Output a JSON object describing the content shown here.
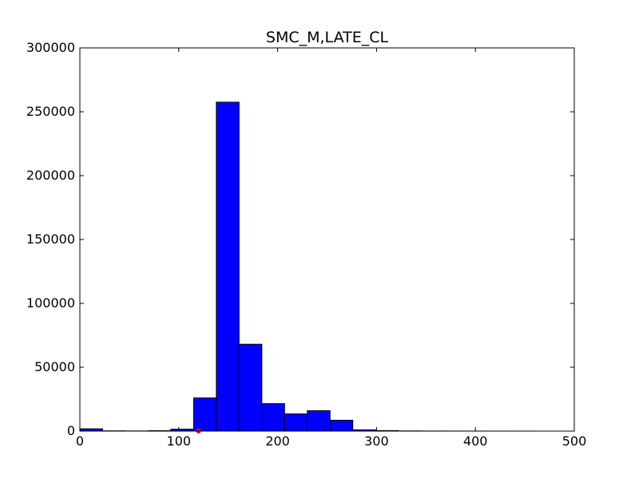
{
  "chart_data": {
    "type": "bar",
    "title": "SMC_M,LATE_CL",
    "xlabel": "",
    "ylabel": "",
    "xlim": [
      0,
      500
    ],
    "ylim": [
      0,
      300000
    ],
    "x_ticks": [
      0,
      100,
      200,
      300,
      400,
      500
    ],
    "y_ticks": [
      0,
      50000,
      100000,
      150000,
      200000,
      250000,
      300000
    ],
    "grid": false,
    "bar_color": "#0000ff",
    "marker_color": "#ff0000",
    "bins": [
      {
        "x0": 0,
        "x1": 23,
        "value": 1800
      },
      {
        "x0": 23,
        "x1": 46,
        "value": 200
      },
      {
        "x0": 46,
        "x1": 69,
        "value": 100
      },
      {
        "x0": 69,
        "x1": 92,
        "value": 300
      },
      {
        "x0": 92,
        "x1": 115,
        "value": 1500
      },
      {
        "x0": 115,
        "x1": 138,
        "value": 26000
      },
      {
        "x0": 138,
        "x1": 161,
        "value": 257500
      },
      {
        "x0": 161,
        "x1": 184,
        "value": 68000
      },
      {
        "x0": 184,
        "x1": 207,
        "value": 21500
      },
      {
        "x0": 207,
        "x1": 230,
        "value": 13500
      },
      {
        "x0": 230,
        "x1": 253,
        "value": 16000
      },
      {
        "x0": 253,
        "x1": 276,
        "value": 8500
      },
      {
        "x0": 276,
        "x1": 299,
        "value": 1000
      },
      {
        "x0": 299,
        "x1": 322,
        "value": 400
      },
      {
        "x0": 322,
        "x1": 345,
        "value": 150
      },
      {
        "x0": 345,
        "x1": 368,
        "value": 80
      },
      {
        "x0": 368,
        "x1": 391,
        "value": 50
      },
      {
        "x0": 391,
        "x1": 414,
        "value": 30
      },
      {
        "x0": 414,
        "x1": 437,
        "value": 20
      },
      {
        "x0": 437,
        "x1": 460,
        "value": 10
      }
    ],
    "markers": [
      {
        "x": 120,
        "y": 0
      }
    ]
  }
}
